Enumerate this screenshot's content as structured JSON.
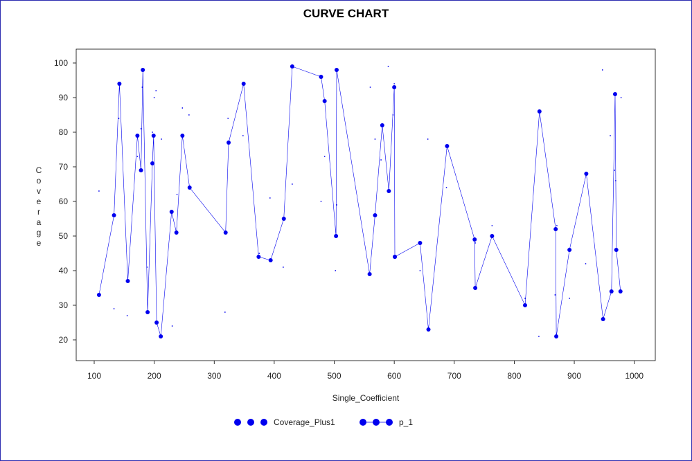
{
  "chart_data": {
    "type": "line",
    "title": "CURVE CHART",
    "xlabel": "Single_Coefficient",
    "ylabel": "Coverage",
    "xlim": [
      70,
      1035
    ],
    "ylim": [
      14,
      104
    ],
    "x_ticks": [
      100,
      200,
      300,
      400,
      500,
      600,
      700,
      800,
      900,
      1000
    ],
    "y_ticks": [
      20,
      30,
      40,
      50,
      60,
      70,
      80,
      90,
      100
    ],
    "grid": false,
    "legend_position": "bottom",
    "colors": {
      "series": "#0000ee",
      "axis": "#000000",
      "frame": "#2b2bb0"
    },
    "series": [
      {
        "name": "Coverage_Plus1",
        "style": "markers",
        "x": [
          108,
          133,
          141,
          155,
          172,
          178,
          180,
          188,
          197,
          200,
          203,
          212,
          230,
          238,
          247,
          258,
          318,
          323,
          348,
          375,
          393,
          415,
          430,
          478,
          484,
          502,
          504,
          560,
          568,
          578,
          580,
          590,
          598,
          600,
          643,
          656,
          687,
          735,
          763,
          818,
          841,
          868,
          871,
          892,
          919,
          947,
          960,
          967,
          969,
          978
        ],
        "y": [
          63,
          29,
          84,
          27,
          73,
          81,
          93,
          41,
          80,
          90,
          92,
          78,
          24,
          62,
          87,
          85,
          28,
          84,
          79,
          45,
          61,
          41,
          65,
          60,
          73,
          40,
          59,
          93,
          78,
          72,
          82,
          99,
          85,
          94,
          40,
          78,
          64,
          48,
          53,
          32,
          21,
          33,
          53,
          32,
          42,
          98,
          79,
          69,
          66,
          90
        ]
      },
      {
        "name": "p_1",
        "style": "line-markers",
        "x": [
          108,
          133,
          142,
          156,
          172,
          178,
          181,
          189,
          197,
          199,
          204,
          211,
          229,
          237,
          247,
          259,
          319,
          324,
          349,
          374,
          394,
          416,
          430,
          478,
          484,
          503,
          504,
          559,
          568,
          580,
          591,
          600,
          601,
          601,
          643,
          657,
          688,
          734,
          735,
          763,
          818,
          842,
          869,
          870,
          892,
          920,
          948,
          962,
          968,
          970,
          977
        ],
        "y": [
          33,
          56,
          94,
          37,
          79,
          69,
          98,
          28,
          71,
          79,
          25,
          21,
          57,
          51,
          79,
          64,
          51,
          77,
          94,
          44,
          43,
          55,
          99,
          96,
          89,
          50,
          98,
          39,
          56,
          82,
          63,
          93,
          44,
          44,
          48,
          23,
          76,
          49,
          35,
          50,
          30,
          86,
          52,
          21,
          46,
          68,
          26,
          34,
          91,
          46,
          34
        ]
      }
    ]
  }
}
